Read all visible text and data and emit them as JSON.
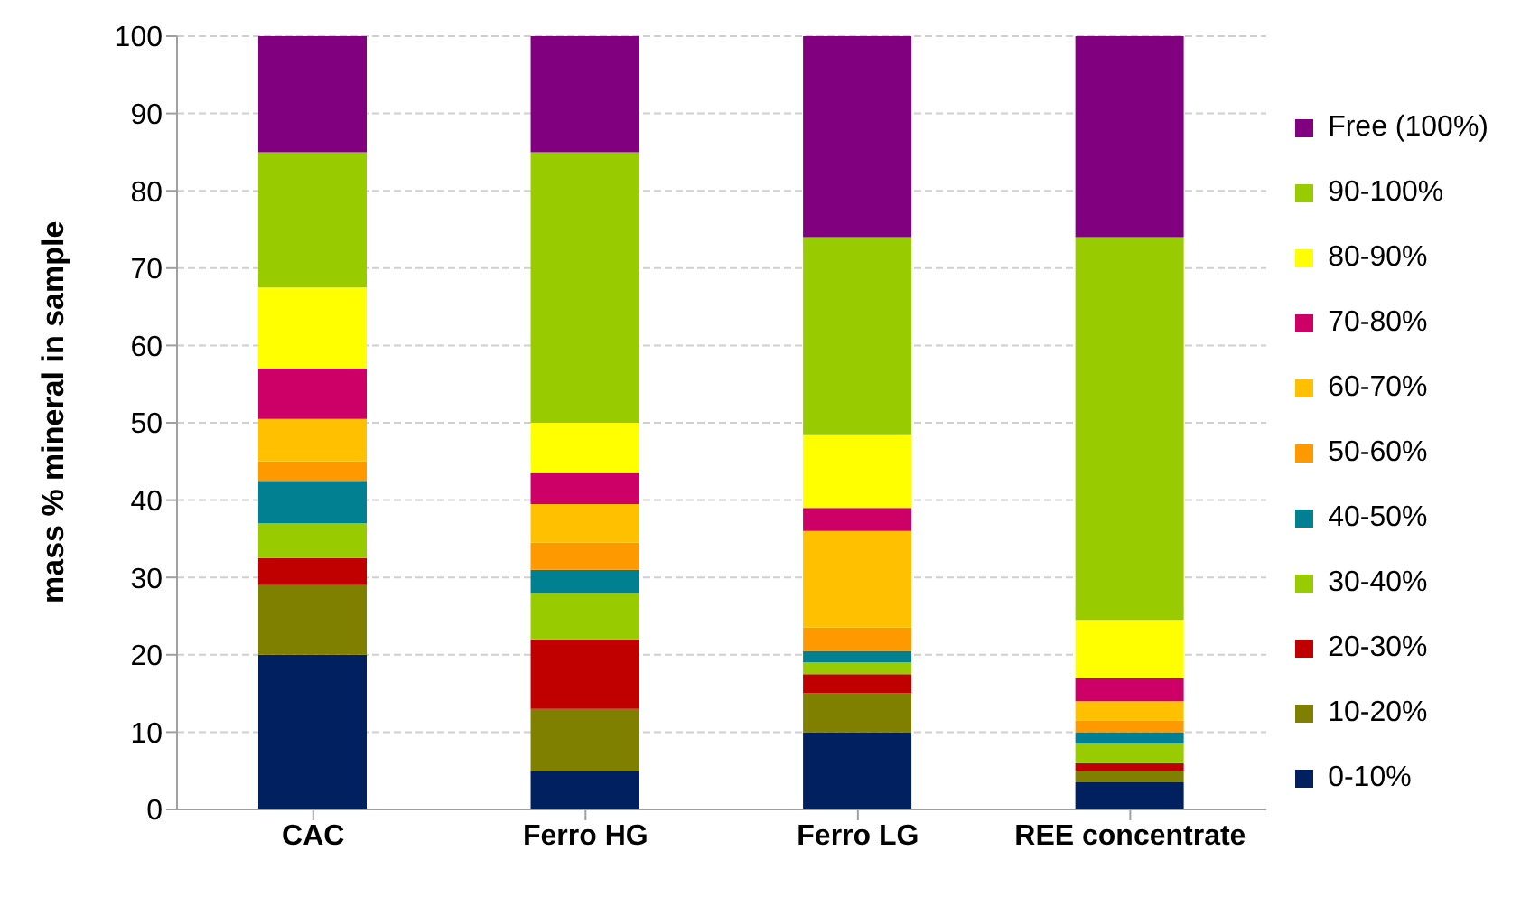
{
  "chart_data": {
    "type": "bar",
    "stacked": true,
    "ylabel": "mass % mineral in sample",
    "categories": [
      "CAC",
      "Ferro HG",
      "Ferro LG",
      "REE concentrate"
    ],
    "series": [
      {
        "name": "0-10%",
        "color": "#002060",
        "values": [
          20,
          5,
          10,
          3.5
        ]
      },
      {
        "name": "10-20%",
        "color": "#808000",
        "values": [
          9,
          8,
          5,
          1.5
        ]
      },
      {
        "name": "20-30%",
        "color": "#c00000",
        "values": [
          3.5,
          9,
          2.5,
          1
        ]
      },
      {
        "name": "30-40%",
        "color": "#99cc00",
        "values": [
          4.5,
          6,
          1.5,
          2.5
        ]
      },
      {
        "name": "40-50%",
        "color": "#008090",
        "values": [
          5.5,
          3,
          1.5,
          1.5
        ]
      },
      {
        "name": "50-60%",
        "color": "#ff9900",
        "values": [
          2.5,
          3.5,
          3,
          1.5
        ]
      },
      {
        "name": "60-70%",
        "color": "#ffc000",
        "values": [
          5.5,
          5,
          12.5,
          2.5
        ]
      },
      {
        "name": "70-80%",
        "color": "#cc0066",
        "values": [
          6.5,
          4,
          3,
          3
        ]
      },
      {
        "name": "80-90%",
        "color": "#ffff00",
        "values": [
          10.5,
          6.5,
          9.5,
          7.5
        ]
      },
      {
        "name": "90-100%",
        "color": "#99cc00",
        "values": [
          17.5,
          35,
          25.5,
          49.5
        ]
      },
      {
        "name": "Free (100%)",
        "color": "#800080",
        "values": [
          15,
          15,
          26,
          26
        ]
      }
    ],
    "ylim": [
      0,
      100
    ],
    "yticks": [
      0,
      10,
      20,
      30,
      40,
      50,
      60,
      70,
      80,
      90,
      100
    ],
    "grid": "y",
    "legend": "right"
  }
}
